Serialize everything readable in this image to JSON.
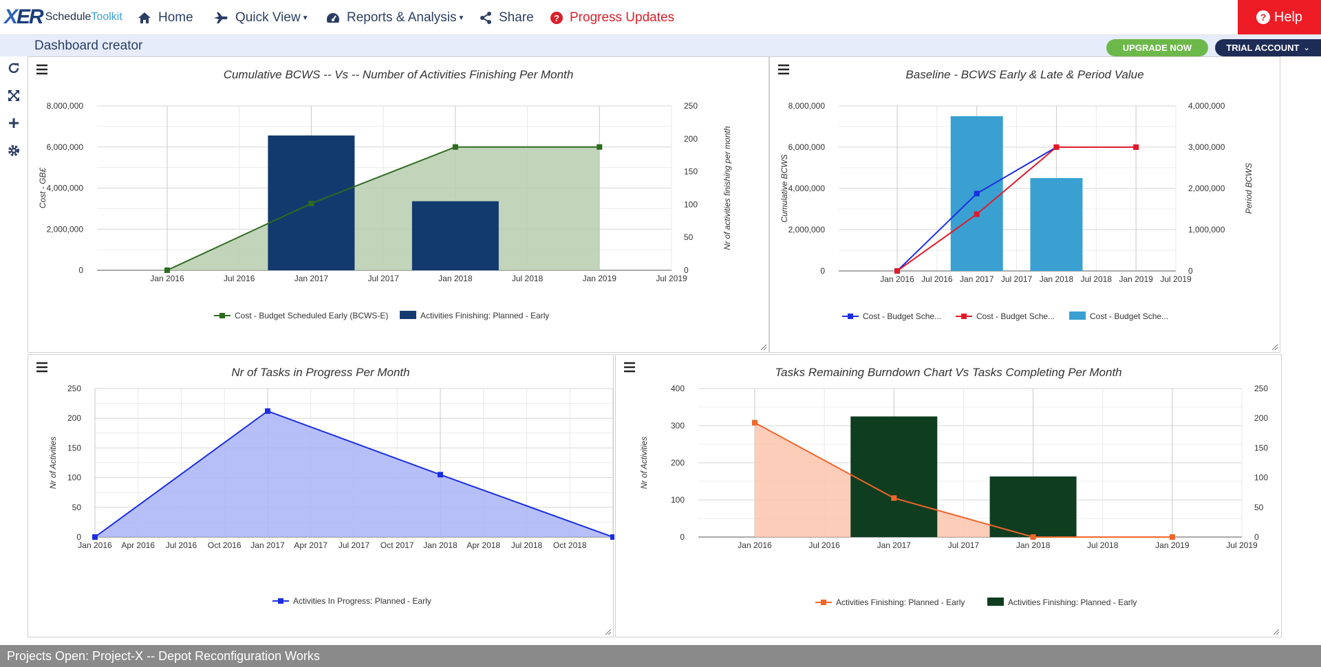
{
  "nav": {
    "logo": {
      "mark_x": "X",
      "mark_r": "ER",
      "brand1": "Schedule",
      "brand2": "Toolkit"
    },
    "items": [
      {
        "label": "Home",
        "icon": "home-icon"
      },
      {
        "label": "Quick View",
        "icon": "plane-icon"
      },
      {
        "label": "Reports & Analysis",
        "icon": "dashboard-icon"
      },
      {
        "label": "Share",
        "icon": "share-icon"
      },
      {
        "label": "Progress Updates",
        "icon": "question-circle-icon"
      }
    ],
    "help_label": "Help"
  },
  "header": {
    "title": "Dashboard creator",
    "upgrade_label": "UPGRADE NOW",
    "trial_label": "TRIAL ACCOUNT"
  },
  "colors": {
    "accent": "#2c3e63",
    "help": "#ee1c25",
    "upgrade": "#6db84a",
    "trial": "#1e2d55"
  },
  "footer": {
    "text": "Projects Open: Project-X -- Depot Reconfiguration Works"
  },
  "chart_data": [
    {
      "type": "bar+area",
      "title": "Cumulative BCWS -- Vs -- Number of Activities Finishing Per Month",
      "ylabel": "Cost - GB£",
      "y2label": "Nr of activities finishing per month",
      "xticks": [
        "Jan 2016",
        "Jul 2016",
        "Jan 2017",
        "Jul 2017",
        "Jan 2018",
        "Jul 2018",
        "Jan 2019",
        "Jul 2019"
      ],
      "ylim": [
        0,
        8000000
      ],
      "yticks": [
        "0",
        "2,000,000",
        "4,000,000",
        "6,000,000",
        "8,000,000"
      ],
      "y2lim": [
        0,
        250
      ],
      "y2ticks": [
        "0",
        "50",
        "100",
        "150",
        "200",
        "250"
      ],
      "grid": true,
      "legend_position": "bottom",
      "series": [
        {
          "name": "Cost - Budget Scheduled Early (BCWS-E)",
          "kind": "area",
          "axis": "left",
          "color": "#2e6b1f",
          "fill": "#b7ccae",
          "x": [
            "Jan 2016",
            "Jan 2017",
            "Jan 2018",
            "Jan 2019"
          ],
          "values": [
            0,
            3250000,
            6000000,
            6000000
          ]
        },
        {
          "name": "Activities Finishing: Planned - Early",
          "kind": "bar",
          "axis": "right",
          "color": "#123a6e",
          "x": [
            "Jan 2017",
            "Jan 2018"
          ],
          "values": [
            205,
            105
          ]
        }
      ]
    },
    {
      "type": "bar+line",
      "title": "Baseline - BCWS Early & Late & Period Value",
      "ylabel": "Cumulative BCWS",
      "y2label": "Period BCWS",
      "xticks": [
        "Jan 2016",
        "Jul 2016",
        "Jan 2017",
        "Jul 2017",
        "Jan 2018",
        "Jul 2018",
        "Jan 2019",
        "Jul 2019"
      ],
      "ylim": [
        0,
        8000000
      ],
      "yticks": [
        "0",
        "2,000,000",
        "4,000,000",
        "6,000,000",
        "8,000,000"
      ],
      "y2lim": [
        0,
        4000000
      ],
      "y2ticks": [
        "0",
        "1,000,000",
        "2,000,000",
        "3,000,000",
        "4,000,000"
      ],
      "grid": true,
      "legend_position": "bottom",
      "series": [
        {
          "name": "Cost - Budget Sche...",
          "kind": "line",
          "axis": "left",
          "color": "#1a2ee0",
          "x": [
            "Jan 2016",
            "Jan 2017",
            "Jan 2018"
          ],
          "values": [
            0,
            3750000,
            6000000
          ]
        },
        {
          "name": "Cost - Budget Sche...",
          "kind": "line",
          "axis": "left",
          "color": "#e01a2a",
          "x": [
            "Jan 2016",
            "Jan 2017",
            "Jan 2018",
            "Jan 2019"
          ],
          "values": [
            0,
            2750000,
            6000000,
            6000000
          ]
        },
        {
          "name": "Cost - Budget Sche...",
          "kind": "bar",
          "axis": "right",
          "color": "#3aa0d2",
          "x": [
            "Jan 2017",
            "Jan 2018"
          ],
          "values": [
            3750000,
            2250000
          ]
        }
      ]
    },
    {
      "type": "area",
      "title": "Nr of Tasks in Progress Per Month",
      "ylabel": "Nr of Activities",
      "xticks": [
        "Jan 2016",
        "Apr 2016",
        "Jul 2016",
        "Oct 2016",
        "Jan 2017",
        "Apr 2017",
        "Jul 2017",
        "Oct 2017",
        "Jan 2018",
        "Apr 2018",
        "Jul 2018",
        "Oct 2018"
      ],
      "ylim": [
        0,
        250
      ],
      "yticks": [
        "0",
        "50",
        "100",
        "150",
        "200",
        "250"
      ],
      "grid": true,
      "legend_position": "bottom",
      "series": [
        {
          "name": "Activities In Progress: Planned - Early",
          "kind": "area",
          "color": "#1a2ee0",
          "fill": "#aab4f7",
          "x": [
            "Jan 2016",
            "Jan 2017",
            "Jan 2018",
            "Jan 2019"
          ],
          "values": [
            0,
            212,
            105,
            0
          ]
        }
      ]
    },
    {
      "type": "bar+area",
      "title": "Tasks Remaining Burndown Chart Vs Tasks Completing Per Month",
      "ylabel": "Nr of Activities",
      "xticks": [
        "Jan 2016",
        "Jul 2016",
        "Jan 2017",
        "Jul 2017",
        "Jan 2018",
        "Jul 2018",
        "Jan 2019",
        "Jul 2019"
      ],
      "ylim": [
        0,
        400
      ],
      "yticks": [
        "0",
        "100",
        "200",
        "300",
        "400"
      ],
      "y2lim": [
        0,
        250
      ],
      "y2ticks": [
        "0",
        "50",
        "100",
        "150",
        "200",
        "250"
      ],
      "grid": true,
      "legend_position": "bottom",
      "series": [
        {
          "name": "Activities Finishing: Planned - Early",
          "kind": "area",
          "axis": "left",
          "color": "#f0652a",
          "fill": "#fcc4ac",
          "x": [
            "Jan 2016",
            "Jan 2017",
            "Jan 2018",
            "Jan 2019"
          ],
          "values": [
            308,
            105,
            0,
            0
          ]
        },
        {
          "name": "Activities Finishing: Planned - Early",
          "kind": "bar",
          "axis": "right",
          "color": "#0e3d20",
          "x": [
            "Jan 2017",
            "Jan 2018"
          ],
          "values": [
            203,
            102
          ]
        }
      ]
    }
  ]
}
